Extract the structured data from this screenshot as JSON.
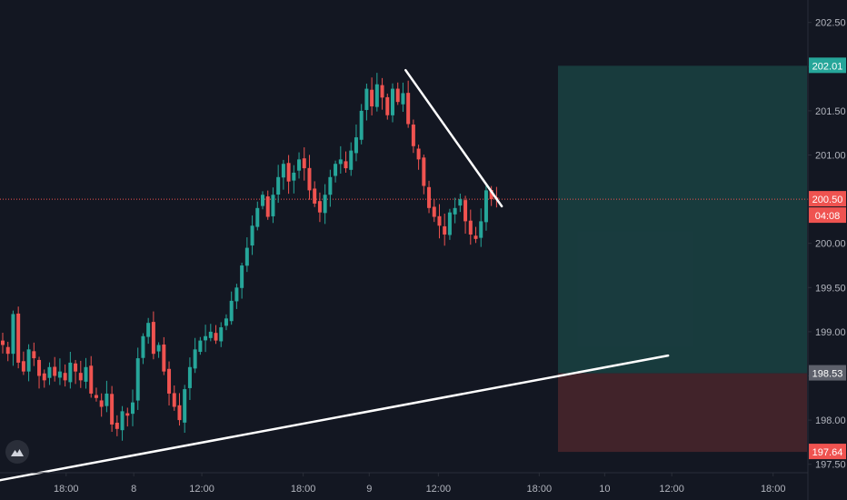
{
  "chart_data": {
    "type": "candlestick",
    "title": "",
    "xlabel": "",
    "ylabel": "",
    "ylim": [
      197.25,
      202.55
    ],
    "y_ticks": [
      "202.50",
      "202.00",
      "201.50",
      "201.00",
      "200.50",
      "200.00",
      "199.50",
      "199.00",
      "198.50",
      "198.00",
      "197.50"
    ],
    "x_ticks": [
      "18:00",
      "8",
      "12:00",
      "18:00",
      "9",
      "12:00",
      "18:00",
      "10",
      "12:00",
      "18:00"
    ],
    "grid": false,
    "colors": {
      "up": "#26a69a",
      "down": "#ef5350",
      "background": "#131722",
      "profit_zone": "#1e5954",
      "loss_zone": "#5b2a2f",
      "line": "#ffffff",
      "axis_text": "#b2b5be"
    },
    "current_price": {
      "label": "200.50",
      "value": 200.5,
      "countdown": "04:08",
      "color": "#ef5350"
    },
    "position": {
      "type": "long",
      "take_profit": {
        "label": "202.01",
        "value": 202.01,
        "color": "#26a69a"
      },
      "entry": {
        "label": "198.53",
        "value": 198.53,
        "color": "#5d606b"
      },
      "stop_loss": {
        "label": "197.64",
        "value": 197.64,
        "color": "#ef5350"
      }
    },
    "trendlines": [
      {
        "name": "support",
        "start": {
          "bar": -0.5,
          "price": 197.32
        },
        "end": {
          "bar": 128,
          "price": 198.73
        }
      },
      {
        "name": "resistance",
        "start": {
          "bar": 77.5,
          "price": 201.96
        },
        "end": {
          "bar": 96,
          "price": 200.42
        }
      }
    ],
    "close_path": [
      198.85,
      198.75,
      199.2,
      198.65,
      198.55,
      198.8,
      198.7,
      198.5,
      198.45,
      198.6,
      198.5,
      198.55,
      198.45,
      198.65,
      198.55,
      198.45,
      198.6,
      198.3,
      198.25,
      198.15,
      198.3,
      197.95,
      197.9,
      198.1,
      198.05,
      198.2,
      198.7,
      198.95,
      199.1,
      198.75,
      198.85,
      198.55,
      198.3,
      198.15,
      198.0,
      198.35,
      198.6,
      198.8,
      198.9,
      198.95,
      199.0,
      198.9,
      199.05,
      199.15,
      199.35,
      199.5,
      199.75,
      199.95,
      200.2,
      200.4,
      200.55,
      200.3,
      200.55,
      200.75,
      200.9,
      200.7,
      200.8,
      200.95,
      200.85,
      200.6,
      200.45,
      200.35,
      200.55,
      200.75,
      200.9,
      200.95,
      200.85,
      201.05,
      201.2,
      201.5,
      201.75,
      201.55,
      201.8,
      201.65,
      201.45,
      201.75,
      201.6,
      201.7,
      201.35,
      201.1,
      200.95,
      200.65,
      200.4,
      200.3,
      200.2,
      200.1,
      200.35,
      200.4,
      200.5,
      200.25,
      200.1,
      200.05,
      200.25,
      200.6,
      200.5,
      200.5
    ]
  }
}
